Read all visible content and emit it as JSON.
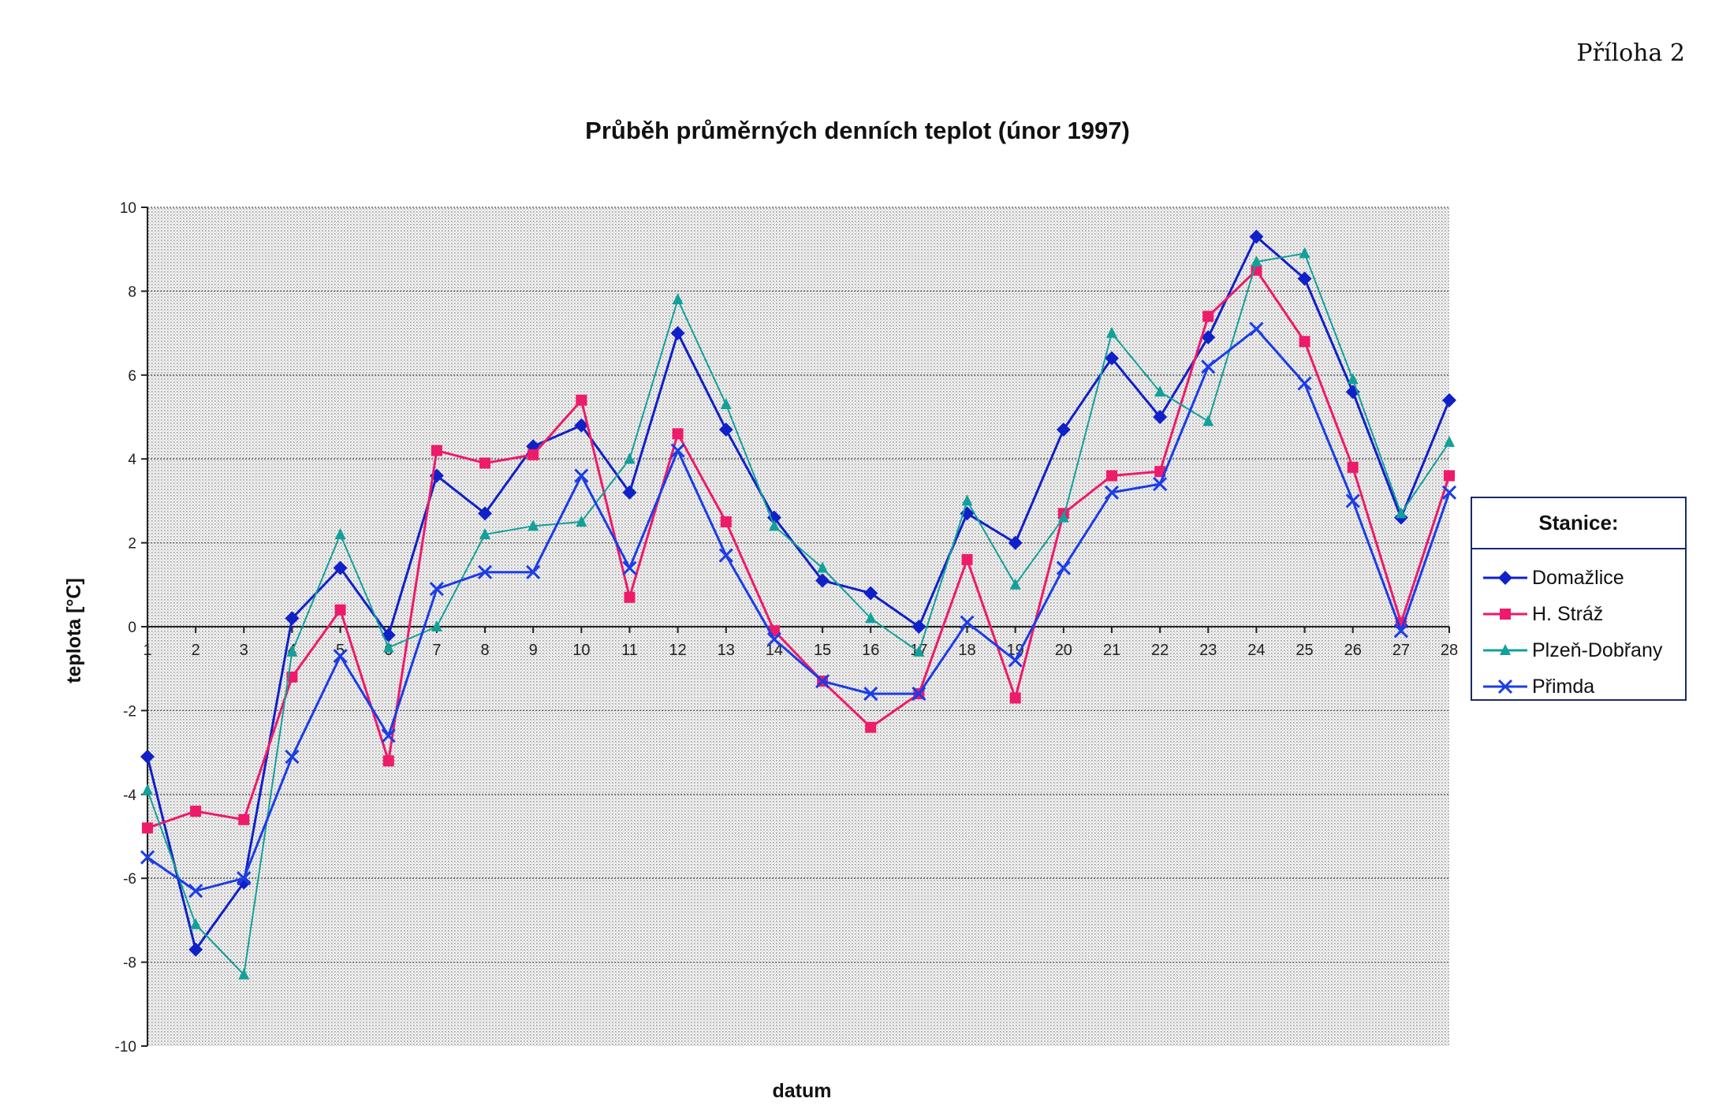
{
  "page_label": "Příloha 2",
  "chart_data": {
    "type": "line",
    "title": "Průběh průměrných denních teplot (únor 1997)",
    "xlabel": "datum",
    "ylabel": "teplota [°C]",
    "ylim": [
      -10,
      10
    ],
    "yticks": [
      10,
      8,
      6,
      4,
      2,
      0,
      -2,
      -4,
      -6,
      -8,
      -10
    ],
    "grid": true,
    "legend_title": "Stanice:",
    "legend_position": "right",
    "categories": [
      "1",
      "2",
      "3",
      "4",
      "5",
      "6",
      "7",
      "8",
      "9",
      "10",
      "11",
      "12",
      "13",
      "14",
      "15",
      "16",
      "17",
      "18",
      "19",
      "20",
      "21",
      "22",
      "23",
      "24",
      "25",
      "26",
      "27",
      "28"
    ],
    "series": [
      {
        "name": "Domažlice",
        "color": "#1020c8",
        "marker": "diamond",
        "values": [
          -3.1,
          -7.7,
          -6.1,
          0.2,
          1.4,
          -0.2,
          3.6,
          2.7,
          4.3,
          4.8,
          3.2,
          7.0,
          4.7,
          2.6,
          1.1,
          0.8,
          0.0,
          2.7,
          2.0,
          4.7,
          6.4,
          5.0,
          6.9,
          9.3,
          8.3,
          5.6,
          2.6,
          5.4
        ]
      },
      {
        "name": "H. Stráž",
        "color": "#ee1a6a",
        "marker": "square",
        "values": [
          -4.8,
          -4.4,
          -4.6,
          -1.2,
          0.4,
          -3.2,
          4.2,
          3.9,
          4.1,
          5.4,
          0.7,
          4.6,
          2.5,
          -0.1,
          -1.3,
          -2.4,
          -1.6,
          1.6,
          -1.7,
          2.7,
          3.6,
          3.7,
          7.4,
          8.5,
          6.8,
          3.8,
          0.1,
          3.6
        ]
      },
      {
        "name": "Plzeň-Dobřany",
        "color": "#12a09a",
        "marker": "triangle",
        "values": [
          -3.9,
          -7.1,
          -8.3,
          -0.6,
          2.2,
          -0.5,
          0.0,
          2.2,
          2.4,
          2.5,
          4.0,
          7.8,
          5.3,
          2.4,
          1.4,
          0.2,
          -0.6,
          3.0,
          1.0,
          2.6,
          7.0,
          5.6,
          4.9,
          8.7,
          8.9,
          5.9,
          2.7,
          4.4
        ]
      },
      {
        "name": "Přimda",
        "color": "#1c3ce6",
        "marker": "cross",
        "values": [
          -5.5,
          -6.3,
          -6.0,
          -3.1,
          -0.7,
          -2.6,
          0.9,
          1.3,
          1.3,
          3.6,
          1.4,
          4.2,
          1.7,
          -0.3,
          -1.3,
          -1.6,
          -1.6,
          0.1,
          -0.8,
          1.4,
          3.2,
          3.4,
          6.2,
          7.1,
          5.8,
          3.0,
          -0.1,
          3.2
        ]
      }
    ]
  }
}
